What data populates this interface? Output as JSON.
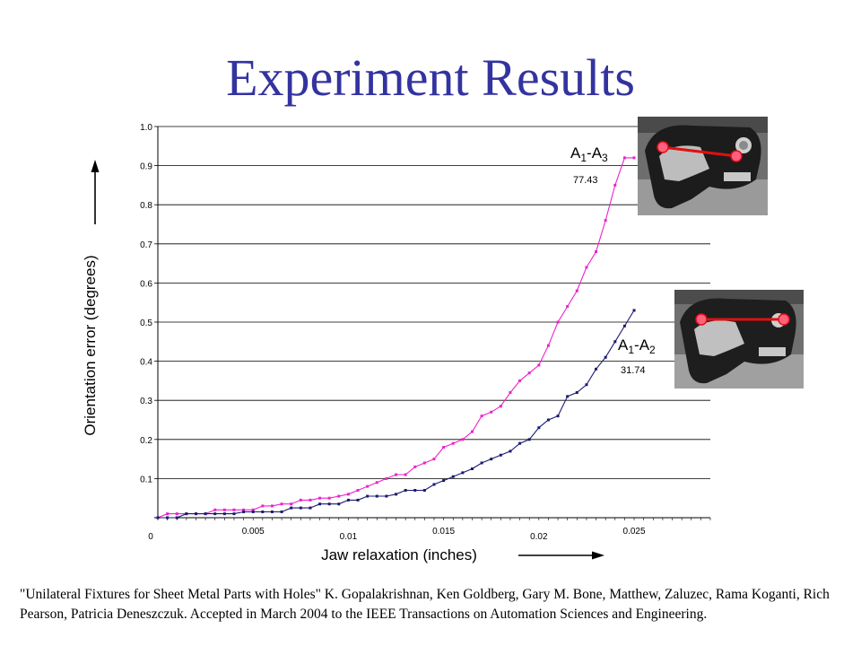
{
  "slide": {
    "title": "Experiment Results",
    "citation": "\"Unilateral Fixtures for Sheet Metal Parts with Holes\" K. Gopalakrishnan, Ken Goldberg, Gary M. Bone, Matthew, Zaluzec, Rama Koganti, Rich Pearson, Patricia Deneszczuk. Accepted in March 2004 to the IEEE Transactions on Automation Sciences and Engineering."
  },
  "colors": {
    "title": "#3333a0",
    "series_a1a3": "#ee22cc",
    "series_a1a2": "#1a1a70",
    "photo_arrow": "#e01010"
  },
  "chart_data": {
    "type": "line",
    "title": "",
    "xlabel": "Jaw relaxation (inches)",
    "ylabel": "Orientation error (degrees)",
    "xlim": [
      0,
      0.029
    ],
    "ylim": [
      0,
      1.0
    ],
    "x_ticks": [
      "0",
      "0.005",
      "0.01",
      "0.015",
      "0.02",
      "0.025"
    ],
    "y_ticks": [
      "0.1",
      "0.2",
      "0.3",
      "0.4",
      "0.5",
      "0.6",
      "0.7",
      "0.8",
      "0.9",
      "1.0"
    ],
    "grid": true,
    "series": [
      {
        "name": "A1-A3",
        "annotation": "77.43",
        "x": [
          0,
          0.0005,
          0.001,
          0.0015,
          0.002,
          0.0025,
          0.003,
          0.0035,
          0.004,
          0.0045,
          0.005,
          0.0055,
          0.006,
          0.0065,
          0.007,
          0.0075,
          0.008,
          0.0085,
          0.009,
          0.0095,
          0.01,
          0.0105,
          0.011,
          0.0115,
          0.012,
          0.0125,
          0.013,
          0.0135,
          0.014,
          0.0145,
          0.015,
          0.0155,
          0.016,
          0.0165,
          0.017,
          0.0175,
          0.018,
          0.0185,
          0.019,
          0.0195,
          0.02,
          0.0205,
          0.021,
          0.0215,
          0.022,
          0.0225,
          0.023,
          0.0235,
          0.024,
          0.0245,
          0.025
        ],
        "values": [
          0.0,
          0.01,
          0.01,
          0.01,
          0.01,
          0.01,
          0.02,
          0.02,
          0.02,
          0.02,
          0.02,
          0.03,
          0.03,
          0.035,
          0.035,
          0.045,
          0.045,
          0.05,
          0.05,
          0.055,
          0.06,
          0.07,
          0.08,
          0.09,
          0.1,
          0.11,
          0.11,
          0.13,
          0.14,
          0.15,
          0.18,
          0.19,
          0.2,
          0.22,
          0.26,
          0.27,
          0.285,
          0.32,
          0.35,
          0.37,
          0.39,
          0.44,
          0.5,
          0.54,
          0.58,
          0.64,
          0.68,
          0.76,
          0.85,
          0.92,
          0.92
        ]
      },
      {
        "name": "A1-A2",
        "annotation": "31.74",
        "x": [
          0,
          0.0005,
          0.001,
          0.0015,
          0.002,
          0.0025,
          0.003,
          0.0035,
          0.004,
          0.0045,
          0.005,
          0.0055,
          0.006,
          0.0065,
          0.007,
          0.0075,
          0.008,
          0.0085,
          0.009,
          0.0095,
          0.01,
          0.0105,
          0.011,
          0.0115,
          0.012,
          0.0125,
          0.013,
          0.0135,
          0.014,
          0.0145,
          0.015,
          0.0155,
          0.016,
          0.0165,
          0.017,
          0.0175,
          0.018,
          0.0185,
          0.019,
          0.0195,
          0.02,
          0.0205,
          0.021,
          0.0215,
          0.022,
          0.0225,
          0.023,
          0.0235,
          0.024,
          0.0245,
          0.025
        ],
        "values": [
          0.0,
          0.0,
          0.0,
          0.01,
          0.01,
          0.01,
          0.01,
          0.01,
          0.01,
          0.015,
          0.015,
          0.015,
          0.015,
          0.015,
          0.025,
          0.025,
          0.025,
          0.035,
          0.035,
          0.035,
          0.045,
          0.045,
          0.055,
          0.055,
          0.055,
          0.06,
          0.07,
          0.07,
          0.07,
          0.085,
          0.095,
          0.105,
          0.115,
          0.125,
          0.14,
          0.15,
          0.16,
          0.17,
          0.19,
          0.2,
          0.23,
          0.25,
          0.26,
          0.31,
          0.32,
          0.34,
          0.38,
          0.41,
          0.45,
          0.49,
          0.53
        ]
      }
    ]
  },
  "photos": [
    {
      "name": "A1-A3"
    },
    {
      "name": "A1-A2"
    }
  ]
}
